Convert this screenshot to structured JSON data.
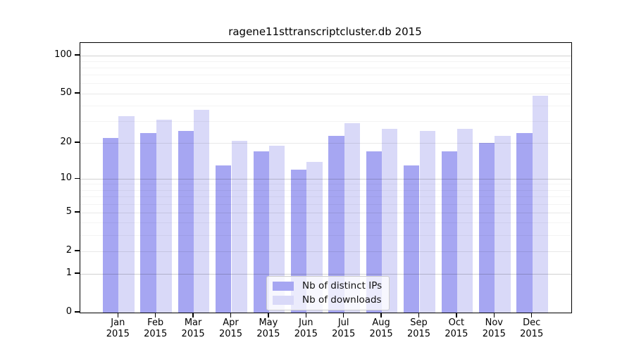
{
  "chart_data": {
    "type": "bar",
    "title": "ragene11sttranscriptcluster.db 2015",
    "categories": [
      "Jan",
      "Feb",
      "Mar",
      "Apr",
      "May",
      "Jun",
      "Jul",
      "Aug",
      "Sep",
      "Oct",
      "Nov",
      "Dec"
    ],
    "x_year_label": "2015",
    "series": [
      {
        "name": "Nb of distinct IPs",
        "color": "#a6a6f2",
        "values": [
          22,
          24,
          25,
          13,
          17,
          12,
          23,
          17,
          13,
          17,
          20,
          24
        ]
      },
      {
        "name": "Nb of downloads",
        "color": "#d9d9f8",
        "values": [
          33,
          31,
          37,
          21,
          19,
          14,
          29,
          26,
          25,
          26,
          23,
          48
        ]
      }
    ],
    "yscale": "log1p",
    "ylim": [
      0,
      126
    ],
    "y_axis": {
      "ticks": [
        {
          "v": 0,
          "label": "0"
        },
        {
          "v": 1,
          "label": "1"
        },
        {
          "v": 2,
          "label": "2"
        },
        {
          "v": 5,
          "label": "5"
        },
        {
          "v": 10,
          "label": "10"
        },
        {
          "v": 20,
          "label": "20"
        },
        {
          "v": 50,
          "label": "50"
        },
        {
          "v": 100,
          "label": "100"
        }
      ],
      "gridline_major_values": [
        1,
        10,
        100
      ],
      "gridline_mid_values": [
        2,
        5,
        20,
        50
      ],
      "gridline_minor_values": [
        3,
        4,
        6,
        7,
        8,
        9,
        30,
        40,
        60,
        70,
        80,
        90
      ]
    },
    "grid": true,
    "legend_position": "bottom-center",
    "colors": {
      "axis": "#000000",
      "grid_major": "rgba(0,0,0,0.18)",
      "grid_mid": "rgba(0,0,0,0.09)",
      "grid_minor": "rgba(0,0,0,0.045)"
    }
  }
}
